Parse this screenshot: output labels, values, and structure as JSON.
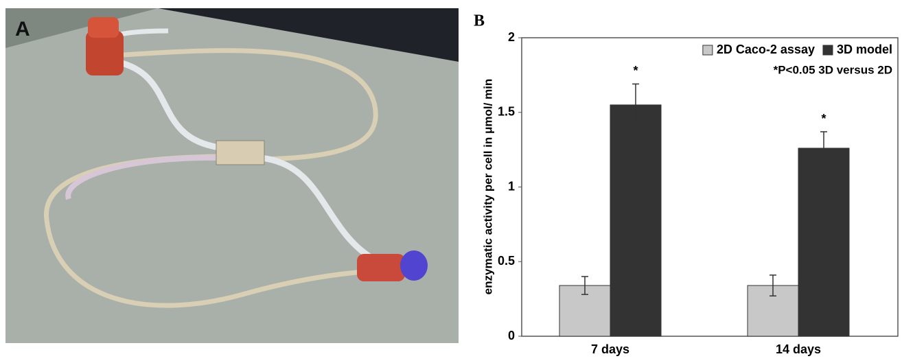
{
  "panel_a": {
    "label": "A"
  },
  "chart_data": {
    "type": "bar",
    "panel_label": "B",
    "ylabel": "enzymatic activity per cell in μmol/ min",
    "categories": [
      "7 days",
      "14 days"
    ],
    "series": [
      {
        "name": "2D Caco-2 assay",
        "color": "#c8c8c8",
        "values": [
          0.34,
          0.34
        ],
        "errors": [
          0.06,
          0.07
        ]
      },
      {
        "name": "3D model",
        "color": "#333333",
        "values": [
          1.55,
          1.26
        ],
        "errors": [
          0.14,
          0.11
        ]
      }
    ],
    "significance_marks": [
      "*",
      "*"
    ],
    "note": "*P<0.05 3D versus 2D",
    "ylim": [
      0,
      2
    ],
    "yticks": [
      0,
      0.5,
      1,
      1.5,
      2
    ],
    "grid": false,
    "legend": "upper right"
  }
}
